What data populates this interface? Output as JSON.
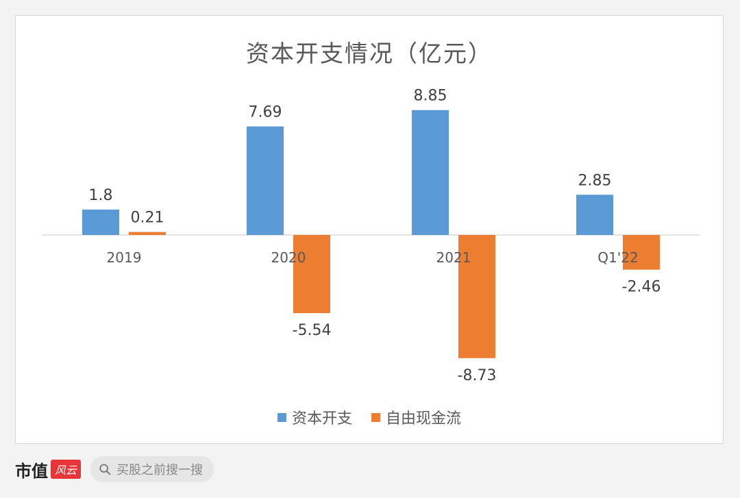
{
  "chart_data": {
    "type": "bar",
    "title": "资本开支情况（亿元）",
    "categories": [
      "2019",
      "2020",
      "2021",
      "Q1'22"
    ],
    "series": [
      {
        "name": "资本开支",
        "color": "#5b9bd5",
        "values": [
          1.8,
          7.69,
          8.85,
          2.85
        ]
      },
      {
        "name": "自由现金流",
        "color": "#ed7d31",
        "values": [
          0.21,
          -5.54,
          -8.73,
          -2.46
        ]
      }
    ],
    "value_labels": {
      "资本开支": [
        "1.8",
        "7.69",
        "8.85",
        "2.85"
      ],
      "自由现金流": [
        "0.21",
        "-5.54",
        "-8.73",
        "-2.46"
      ]
    },
    "ylim": [
      -10,
      10
    ],
    "grid": false,
    "legend": "bottom"
  },
  "footer": {
    "brand_text": "市值",
    "brand_logo_text": "风云",
    "search_placeholder": "买股之前搜一搜",
    "search_icon": "search-icon"
  }
}
